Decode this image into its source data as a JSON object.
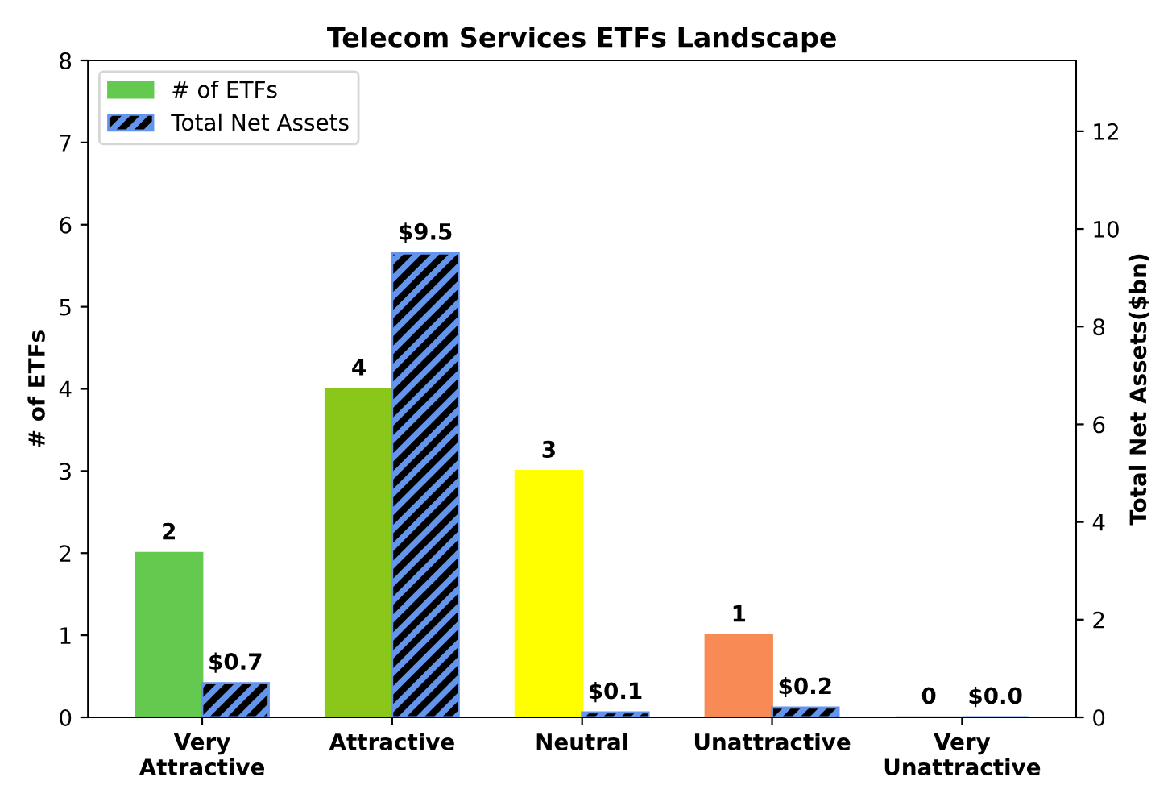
{
  "chart_data": {
    "type": "bar",
    "title": "Telecom Services ETFs Landscape",
    "ylabel": "# of ETFs",
    "y2label": "Total Net Assets($bn)",
    "categories": [
      "Very\nAttractive",
      "Attractive",
      "Neutral",
      "Unattractive",
      "Very\nUnattractive"
    ],
    "series": [
      {
        "name": "# of ETFs",
        "colors": [
          "#63c94f",
          "#8bc61a",
          "#ffff00",
          "#f88a55",
          "#c0c0c0"
        ],
        "values": [
          2,
          4,
          3,
          1,
          0
        ],
        "value_labels": [
          "2",
          "4",
          "3",
          "1",
          "0"
        ]
      },
      {
        "name": "Total Net Assets",
        "axis": "y2",
        "color": "#6495ed",
        "values": [
          0.7,
          9.5,
          0.1,
          0.2,
          0.0
        ],
        "value_labels": [
          "$0.7",
          "$9.5",
          "$0.1",
          "$0.2",
          "$0.0"
        ]
      }
    ],
    "ylim": [
      0,
      8
    ],
    "yticks": [
      0,
      1,
      2,
      3,
      4,
      5,
      6,
      7,
      8
    ],
    "y2lim": [
      0,
      13.45
    ],
    "y2ticks": [
      0,
      2,
      4,
      6,
      8,
      10,
      12
    ],
    "legend": "top left",
    "grid": false
  }
}
